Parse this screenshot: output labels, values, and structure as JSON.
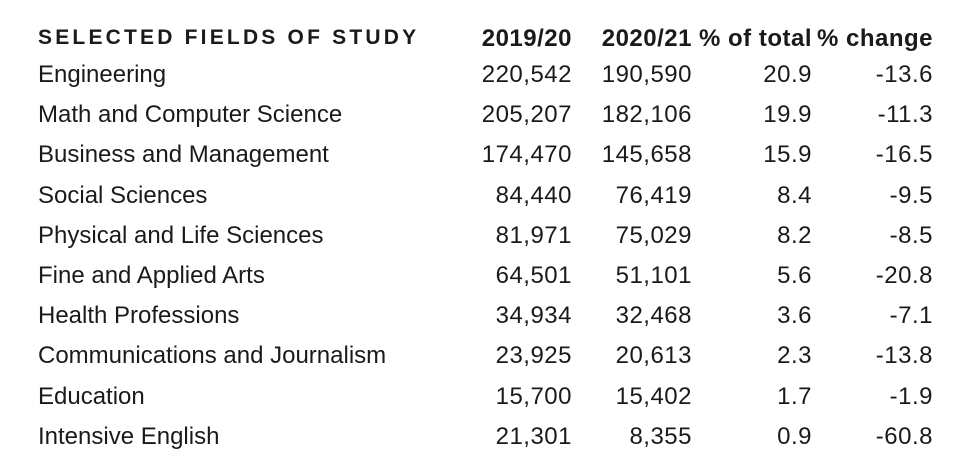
{
  "chart_data": {
    "type": "table",
    "columns": [
      "SELECTED FIELDS OF STUDY",
      "2019/20",
      "2020/21",
      "% of total",
      "% change"
    ],
    "rows": [
      {
        "field": "Engineering",
        "y2019_20": "220,542",
        "y2020_21": "190,590",
        "pct_total": "20.9",
        "pct_change": "-13.6"
      },
      {
        "field": "Math and Computer Science",
        "y2019_20": "205,207",
        "y2020_21": "182,106",
        "pct_total": "19.9",
        "pct_change": "-11.3"
      },
      {
        "field": "Business and Management",
        "y2019_20": "174,470",
        "y2020_21": "145,658",
        "pct_total": "15.9",
        "pct_change": "-16.5"
      },
      {
        "field": "Social Sciences",
        "y2019_20": "84,440",
        "y2020_21": "76,419",
        "pct_total": "8.4",
        "pct_change": "-9.5"
      },
      {
        "field": "Physical and Life Sciences",
        "y2019_20": "81,971",
        "y2020_21": "75,029",
        "pct_total": "8.2",
        "pct_change": "-8.5"
      },
      {
        "field": "Fine and Applied Arts",
        "y2019_20": "64,501",
        "y2020_21": "51,101",
        "pct_total": "5.6",
        "pct_change": "-20.8"
      },
      {
        "field": "Health Professions",
        "y2019_20": "34,934",
        "y2020_21": "32,468",
        "pct_total": "3.6",
        "pct_change": "-7.1"
      },
      {
        "field": "Communications and Journalism",
        "y2019_20": "23,925",
        "y2020_21": "20,613",
        "pct_total": "2.3",
        "pct_change": "-13.8"
      },
      {
        "field": "Education",
        "y2019_20": "15,700",
        "y2020_21": "15,402",
        "pct_total": "1.7",
        "pct_change": "-1.9"
      },
      {
        "field": "Intensive English",
        "y2019_20": "21,301",
        "y2020_21": "8,355",
        "pct_total": "0.9",
        "pct_change": "-60.8"
      }
    ]
  }
}
